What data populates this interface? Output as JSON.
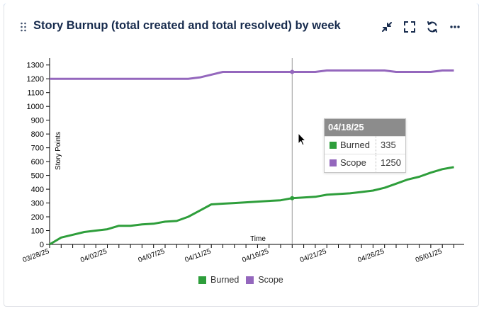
{
  "header": {
    "title": "Story Burnup (total created and total resolved) by week",
    "drag_handle_icon": "drag-handle-icon",
    "buttons": [
      {
        "name": "minimize-button",
        "icon": "minimize-icon"
      },
      {
        "name": "fullscreen-button",
        "icon": "fullscreen-icon"
      },
      {
        "name": "refresh-button",
        "icon": "refresh-icon"
      },
      {
        "name": "more-button",
        "icon": "more-icon"
      }
    ]
  },
  "colors": {
    "accent": "#2684ff",
    "burned": "#2e9e3b",
    "scope": "#9467bd",
    "tooltip_header": "#8c8c8c"
  },
  "tooltip": {
    "date": "04/18/25",
    "rows": [
      {
        "name": "Burned",
        "value": "335"
      },
      {
        "name": "Scope",
        "value": "1250"
      }
    ]
  },
  "chart_data": {
    "type": "line",
    "xlabel": "Time",
    "ylabel": "Story Points",
    "ylim": [
      0,
      1350
    ],
    "yticks": [
      0,
      100,
      200,
      300,
      400,
      500,
      600,
      700,
      800,
      900,
      1000,
      1100,
      1200,
      1300
    ],
    "x_tick_labels": [
      {
        "label": "03/28/25",
        "day": 0
      },
      {
        "label": "04/02/25",
        "day": 5
      },
      {
        "label": "04/07/25",
        "day": 10
      },
      {
        "label": "04/11/25",
        "day": 14
      },
      {
        "label": "04/16/25",
        "day": 19
      },
      {
        "label": "04/21/25",
        "day": 24
      },
      {
        "label": "04/26/25",
        "day": 29
      },
      {
        "label": "05/01/25",
        "day": 34
      }
    ],
    "x": [
      0,
      1,
      2,
      3,
      4,
      5,
      6,
      7,
      8,
      9,
      10,
      11,
      12,
      13,
      14,
      15,
      16,
      17,
      18,
      19,
      20,
      21,
      22,
      23,
      24,
      25,
      26,
      27,
      28,
      29,
      30,
      31,
      32,
      33,
      34,
      35
    ],
    "series": [
      {
        "name": "Burned",
        "values": [
          0,
          50,
          70,
          90,
          100,
          110,
          135,
          135,
          145,
          150,
          165,
          170,
          200,
          245,
          290,
          295,
          300,
          305,
          310,
          315,
          320,
          335,
          340,
          345,
          360,
          365,
          370,
          380,
          390,
          410,
          440,
          470,
          490,
          520,
          545,
          560
        ]
      },
      {
        "name": "Scope",
        "values": [
          1200,
          1200,
          1200,
          1200,
          1200,
          1200,
          1200,
          1200,
          1200,
          1200,
          1200,
          1200,
          1200,
          1210,
          1230,
          1250,
          1250,
          1250,
          1250,
          1250,
          1250,
          1250,
          1250,
          1250,
          1260,
          1260,
          1260,
          1260,
          1260,
          1260,
          1250,
          1250,
          1250,
          1250,
          1260,
          1260
        ]
      }
    ],
    "crosshair_day": 21,
    "legend_position": "bottom-center",
    "grid": false
  }
}
